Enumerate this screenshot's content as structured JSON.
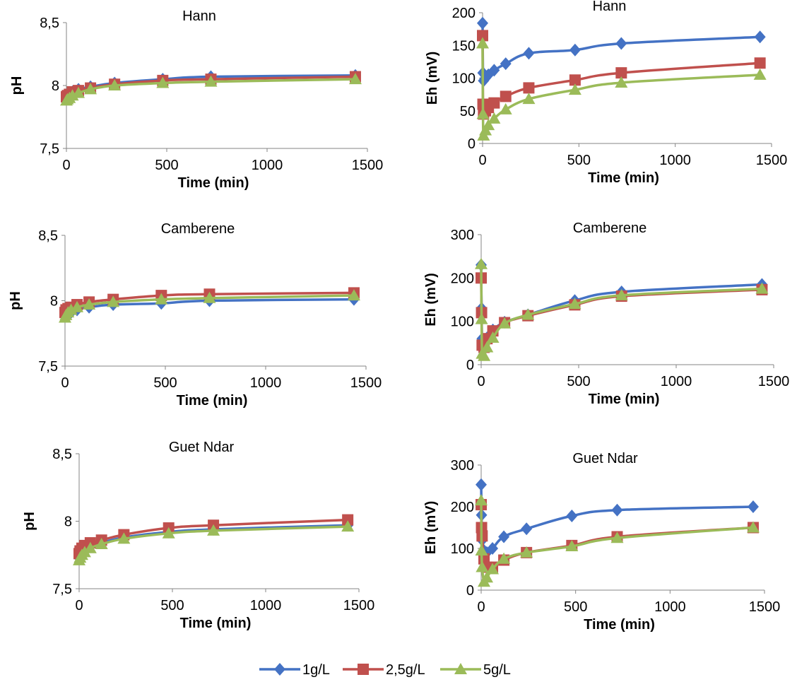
{
  "legend": [
    {
      "name": "1g/L",
      "color": "#4472c4",
      "marker": "diamond"
    },
    {
      "name": "2,5g/L",
      "color": "#c0504d",
      "marker": "square"
    },
    {
      "name": "5g/L",
      "color": "#9bbb59",
      "marker": "triangle"
    }
  ],
  "chart_data": [
    {
      "type": "line",
      "title": "Hann",
      "xlabel": "Time (min)",
      "ylabel": "pH",
      "xlim": [
        0,
        1500
      ],
      "ylim": [
        7.5,
        8.5
      ],
      "xticks": [
        "0",
        "500",
        "1000",
        "1500"
      ],
      "yticks": [
        "7,5",
        "8",
        "8,5"
      ],
      "grid": false,
      "series": [
        {
          "name": "1g/L",
          "x": [
            0,
            5,
            15,
            30,
            60,
            120,
            240,
            480,
            720,
            1440
          ],
          "y": [
            7.9,
            7.91,
            7.93,
            7.95,
            7.97,
            7.99,
            8.02,
            8.05,
            8.07,
            8.08
          ]
        },
        {
          "name": "2,5g/L",
          "x": [
            0,
            5,
            15,
            30,
            60,
            120,
            240,
            480,
            720,
            1440
          ],
          "y": [
            7.91,
            7.92,
            7.93,
            7.95,
            7.96,
            7.98,
            8.01,
            8.04,
            8.05,
            8.07
          ]
        },
        {
          "name": "5g/L",
          "x": [
            0,
            5,
            15,
            30,
            60,
            120,
            240,
            480,
            720,
            1440
          ],
          "y": [
            7.88,
            7.89,
            7.9,
            7.92,
            7.94,
            7.97,
            8.0,
            8.02,
            8.03,
            8.05
          ]
        }
      ]
    },
    {
      "type": "line",
      "title": "Hann",
      "xlabel": "Time (min)",
      "ylabel": "Eh (mV)",
      "xlim": [
        0,
        1500
      ],
      "ylim": [
        0,
        200
      ],
      "xticks": [
        "0",
        "500",
        "1000",
        "1500"
      ],
      "yticks": [
        "0",
        "50",
        "100",
        "150",
        "200"
      ],
      "grid": false,
      "series": [
        {
          "name": "1g/L",
          "x": [
            0,
            2,
            5,
            15,
            30,
            60,
            120,
            240,
            480,
            720,
            1440
          ],
          "y": [
            184,
            108,
            96,
            100,
            105,
            112,
            122,
            138,
            143,
            153,
            163
          ]
        },
        {
          "name": "2,5g/L",
          "x": [
            0,
            2,
            5,
            15,
            30,
            60,
            120,
            240,
            480,
            720,
            1440
          ],
          "y": [
            165,
            60,
            45,
            50,
            55,
            62,
            72,
            85,
            97,
            108,
            123
          ]
        },
        {
          "name": "5g/L",
          "x": [
            0,
            2,
            5,
            15,
            30,
            60,
            120,
            240,
            480,
            720,
            1440
          ],
          "y": [
            153,
            45,
            12,
            20,
            28,
            38,
            52,
            68,
            82,
            93,
            105
          ]
        }
      ]
    },
    {
      "type": "line",
      "title": "Camberene",
      "xlabel": "Time (min)",
      "ylabel": "pH",
      "xlim": [
        0,
        1500
      ],
      "ylim": [
        7.5,
        8.5
      ],
      "xticks": [
        "0",
        "500",
        "1000",
        "1500"
      ],
      "yticks": [
        "7,5",
        "8",
        "8,5"
      ],
      "grid": false,
      "series": [
        {
          "name": "1g/L",
          "x": [
            0,
            5,
            15,
            30,
            60,
            120,
            240,
            480,
            720,
            1440
          ],
          "y": [
            7.88,
            7.89,
            7.9,
            7.91,
            7.93,
            7.95,
            7.97,
            7.98,
            8.0,
            8.01
          ]
        },
        {
          "name": "2,5g/L",
          "x": [
            0,
            5,
            15,
            30,
            60,
            120,
            240,
            480,
            720,
            1440
          ],
          "y": [
            7.91,
            7.93,
            7.94,
            7.95,
            7.97,
            7.99,
            8.01,
            8.04,
            8.05,
            8.06
          ]
        },
        {
          "name": "5g/L",
          "x": [
            0,
            5,
            15,
            30,
            60,
            120,
            240,
            480,
            720,
            1440
          ],
          "y": [
            7.87,
            7.89,
            7.91,
            7.93,
            7.95,
            7.97,
            7.99,
            8.01,
            8.02,
            8.04
          ]
        }
      ]
    },
    {
      "type": "line",
      "title": "Camberene",
      "xlabel": "Time (min)",
      "ylabel": "Eh (mV)",
      "xlim": [
        0,
        1500
      ],
      "ylim": [
        0,
        300
      ],
      "xticks": [
        "0",
        "500",
        "1000",
        "1500"
      ],
      "yticks": [
        "0",
        "100",
        "200",
        "300"
      ],
      "grid": false,
      "series": [
        {
          "name": "1g/L",
          "x": [
            0,
            2,
            5,
            15,
            30,
            60,
            120,
            240,
            480,
            720,
            1440
          ],
          "y": [
            230,
            130,
            60,
            50,
            62,
            80,
            98,
            115,
            148,
            168,
            185
          ]
        },
        {
          "name": "2,5g/L",
          "x": [
            0,
            2,
            5,
            15,
            30,
            60,
            120,
            240,
            480,
            720,
            1440
          ],
          "y": [
            200,
            120,
            45,
            40,
            60,
            78,
            97,
            113,
            138,
            158,
            173
          ]
        },
        {
          "name": "5g/L",
          "x": [
            0,
            2,
            5,
            15,
            30,
            60,
            120,
            240,
            480,
            720,
            1440
          ],
          "y": [
            232,
            105,
            25,
            20,
            40,
            62,
            95,
            115,
            140,
            160,
            175
          ]
        }
      ]
    },
    {
      "type": "line",
      "title": "Guet Ndar",
      "xlabel": "Time (min)",
      "ylabel": "pH",
      "xlim": [
        0,
        1500
      ],
      "ylim": [
        7.5,
        8.5
      ],
      "xticks": [
        "0",
        "500",
        "1000",
        "1500"
      ],
      "yticks": [
        "7,5",
        "8",
        "8,5"
      ],
      "grid": false,
      "series": [
        {
          "name": "1g/L",
          "x": [
            0,
            5,
            15,
            30,
            60,
            120,
            240,
            480,
            720,
            1440
          ],
          "y": [
            7.73,
            7.75,
            7.77,
            7.79,
            7.82,
            7.84,
            7.88,
            7.92,
            7.94,
            7.97
          ]
        },
        {
          "name": "2,5g/L",
          "x": [
            0,
            5,
            15,
            30,
            60,
            120,
            240,
            480,
            720,
            1440
          ],
          "y": [
            7.76,
            7.78,
            7.8,
            7.82,
            7.84,
            7.86,
            7.9,
            7.95,
            7.97,
            8.01
          ]
        },
        {
          "name": "5g/L",
          "x": [
            0,
            5,
            15,
            30,
            60,
            120,
            240,
            480,
            720,
            1440
          ],
          "y": [
            7.71,
            7.73,
            7.75,
            7.77,
            7.8,
            7.83,
            7.87,
            7.91,
            7.93,
            7.96
          ]
        }
      ]
    },
    {
      "type": "line",
      "title": "Guet Ndar",
      "xlabel": "Time (min)",
      "ylabel": "Eh (mV)",
      "xlim": [
        0,
        1500
      ],
      "ylim": [
        0,
        300
      ],
      "xticks": [
        "0",
        "500",
        "1000",
        "1500"
      ],
      "yticks": [
        "0",
        "100",
        "200",
        "300"
      ],
      "grid": false,
      "series": [
        {
          "name": "1g/L",
          "x": [
            0,
            2,
            5,
            15,
            30,
            60,
            120,
            240,
            480,
            720,
            1440
          ],
          "y": [
            253,
            180,
            120,
            95,
            90,
            100,
            128,
            147,
            178,
            192,
            200
          ]
        },
        {
          "name": "2,5g/L",
          "x": [
            0,
            2,
            5,
            15,
            30,
            60,
            120,
            240,
            480,
            720,
            1440
          ],
          "y": [
            205,
            150,
            130,
            75,
            55,
            55,
            72,
            90,
            107,
            128,
            150
          ]
        },
        {
          "name": "5g/L",
          "x": [
            0,
            2,
            5,
            15,
            30,
            60,
            120,
            240,
            480,
            720,
            1440
          ],
          "y": [
            215,
            95,
            55,
            20,
            30,
            50,
            75,
            90,
            105,
            125,
            150
          ]
        }
      ]
    }
  ]
}
